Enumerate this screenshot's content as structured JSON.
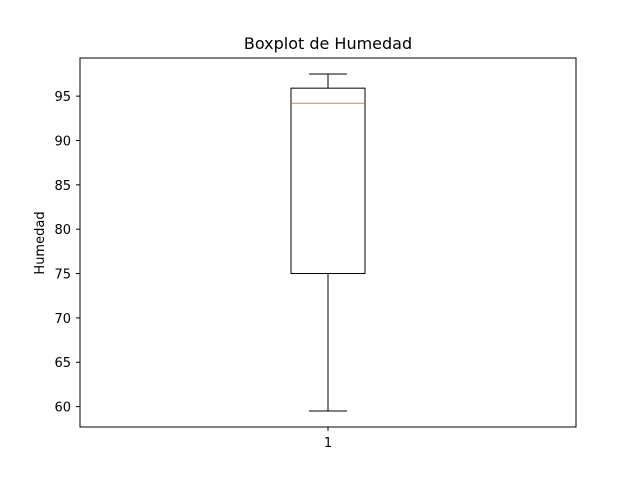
{
  "chart_data": {
    "type": "box",
    "title": "Boxplot de Humedad",
    "xlabel": "",
    "ylabel": "Humedad",
    "categories": [
      "1"
    ],
    "boxes": [
      {
        "category": "1",
        "whisker_low": 59.5,
        "q1": 75.0,
        "median": 94.2,
        "q3": 95.9,
        "whisker_high": 97.5
      }
    ],
    "ylim": [
      57.7,
      99.3
    ],
    "yticks": [
      60,
      65,
      70,
      75,
      80,
      85,
      90,
      95
    ],
    "ytick_labels": [
      "60",
      "65",
      "70",
      "75",
      "80",
      "85",
      "90",
      "95"
    ],
    "grid": false,
    "colors": {
      "box": "#000000",
      "median": "#ff7f0e",
      "whisker": "#000000"
    }
  }
}
